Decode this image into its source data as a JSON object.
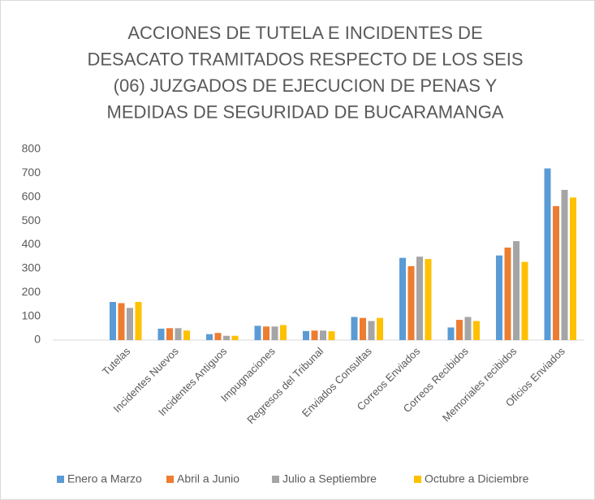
{
  "chart_data": {
    "type": "bar",
    "title": [
      "ACCIONES DE TUTELA E INCIDENTES DE",
      "DESACATO TRAMITADOS RESPECTO DE LOS SEIS",
      "(06) JUZGADOS DE EJECUCION DE PENAS Y",
      "MEDIDAS DE SEGURIDAD DE BUCARAMANGA"
    ],
    "categories": [
      "Tutelas",
      "Incidentes Nuevos",
      "Incidentes Antiguos",
      "Impugnaciones",
      "Regresos del Tribunal",
      "Enviados Consultas",
      "Correos Enviados",
      "Correos Recibidos",
      "Memoriales recibidos",
      "Oficios Enviados"
    ],
    "series": [
      {
        "name": "Enero a Marzo",
        "color": "#5b9bd5",
        "values": [
          160,
          48,
          25,
          60,
          38,
          97,
          345,
          53,
          355,
          720
        ]
      },
      {
        "name": "Abril a Junio",
        "color": "#ed7d31",
        "values": [
          155,
          50,
          30,
          57,
          40,
          93,
          310,
          85,
          388,
          562
        ]
      },
      {
        "name": "Julio a Septiembre",
        "color": "#a5a5a5",
        "values": [
          135,
          50,
          18,
          57,
          40,
          80,
          350,
          97,
          415,
          630
        ]
      },
      {
        "name": "Octubre a Diciembre",
        "color": "#ffc000",
        "values": [
          160,
          40,
          18,
          63,
          37,
          93,
          340,
          80,
          328,
          598
        ]
      }
    ],
    "ylim": [
      0,
      800
    ],
    "yticks": [
      0,
      100,
      200,
      300,
      400,
      500,
      600,
      700,
      800
    ],
    "grid": false,
    "legend": "bottom"
  }
}
